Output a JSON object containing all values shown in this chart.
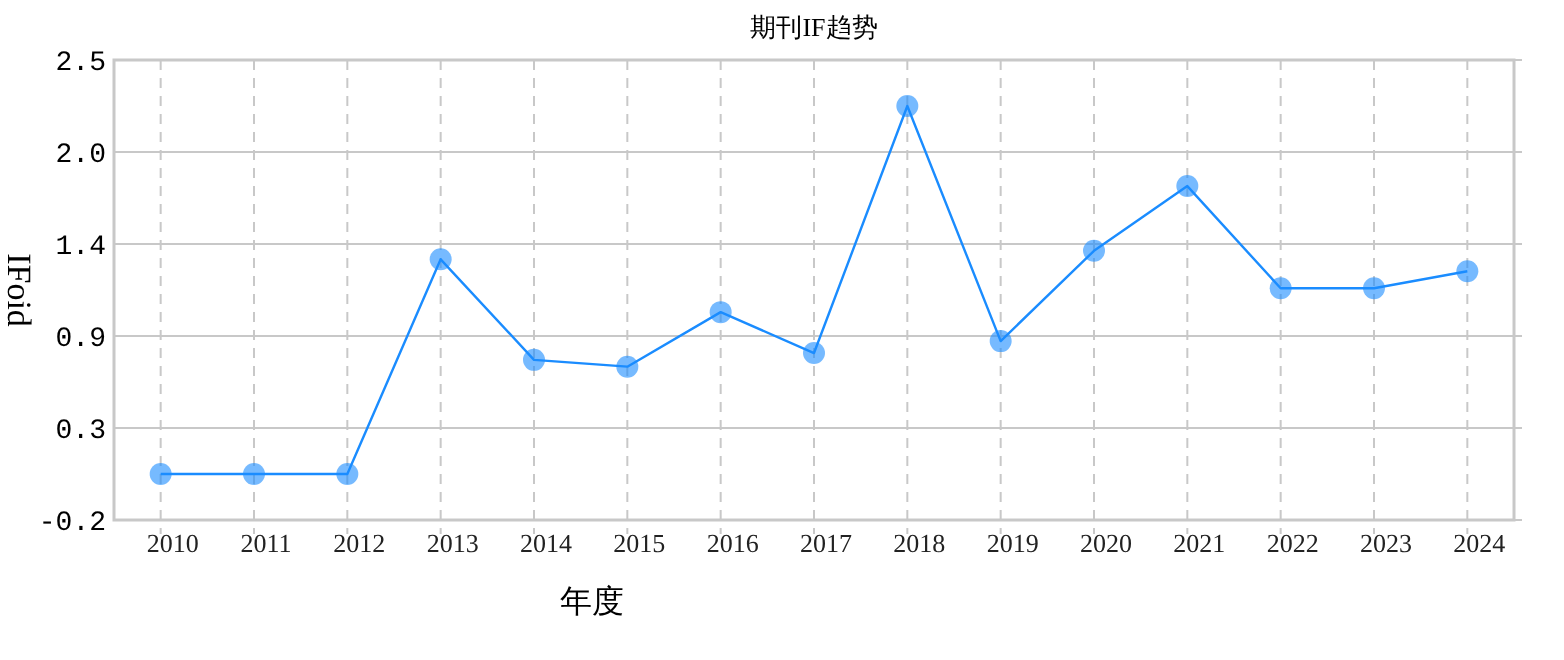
{
  "chart_data": {
    "type": "line",
    "title": "期刊IF趋势",
    "xlabel": "年度",
    "ylabel": "IFoid",
    "categories": [
      "2010",
      "2011",
      "2012",
      "2013",
      "2014",
      "2015",
      "2016",
      "2017",
      "2018",
      "2019",
      "2020",
      "2021",
      "2022",
      "2023",
      "2024"
    ],
    "series": [
      {
        "color": "#1a8cff",
        "values": [
          0.07,
          0.07,
          0.07,
          1.33,
          0.74,
          0.7,
          1.02,
          0.78,
          2.23,
          0.85,
          1.38,
          1.76,
          1.16,
          1.16,
          1.26
        ]
      }
    ],
    "ylim": [
      -0.2,
      2.5
    ],
    "yticks": [
      {
        "value": -0.2,
        "label": "-0.2"
      },
      {
        "value": 0.34,
        "label": "0.3"
      },
      {
        "value": 0.88,
        "label": "0.9"
      },
      {
        "value": 1.42,
        "label": "1.4"
      },
      {
        "value": 1.96,
        "label": "2.0"
      },
      {
        "value": 2.5,
        "label": "2.5"
      }
    ],
    "grid": true,
    "marker": "circle",
    "line_style": "solid"
  }
}
